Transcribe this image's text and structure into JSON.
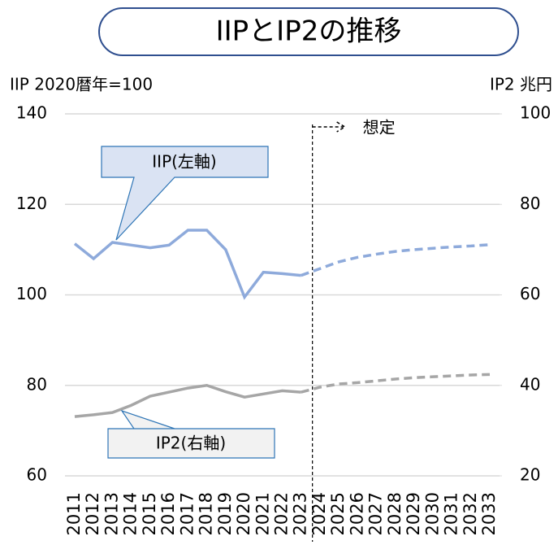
{
  "chart_data": {
    "type": "line",
    "title": "IIPとIP2の推移",
    "y_label": "IIP 2020暦年=100",
    "y2_label": "IP2 兆円",
    "annotation": "想定",
    "categories": [
      "2011",
      "2012",
      "2013",
      "2014",
      "2015",
      "2016",
      "2017",
      "2018",
      "2019",
      "2020",
      "2021",
      "2022",
      "2023",
      "2024",
      "2025",
      "2026",
      "2027",
      "2028",
      "2029",
      "2030",
      "2031",
      "2032",
      "2033"
    ],
    "dashed_from": "2023",
    "series": [
      {
        "name": "IIP(左軸)",
        "color": "#8eaadb",
        "axis": "y",
        "values": [
          111.3,
          108,
          111.6,
          111,
          110.4,
          111,
          114.3,
          114.3,
          110,
          99.5,
          105,
          104.7,
          104.3,
          105.8,
          107.3,
          108.3,
          109,
          109.6,
          110,
          110.3,
          110.6,
          110.8,
          111.1
        ]
      },
      {
        "name": "IP2(右軸)",
        "color": "#a6a6a6",
        "axis": "y2",
        "values": [
          33.1,
          33.5,
          34,
          35.6,
          37.6,
          38.5,
          39.4,
          40,
          38.6,
          37.4,
          38.1,
          38.8,
          38.5,
          39.6,
          40.3,
          40.6,
          41,
          41.4,
          41.7,
          41.9,
          42.1,
          42.3,
          42.4
        ]
      }
    ],
    "ylim": [
      60,
      140
    ],
    "yticks": [
      60,
      80,
      100,
      120,
      140
    ],
    "y2lim": [
      20,
      100
    ],
    "y2ticks": [
      20,
      40,
      60,
      80,
      100
    ],
    "grid": true
  }
}
